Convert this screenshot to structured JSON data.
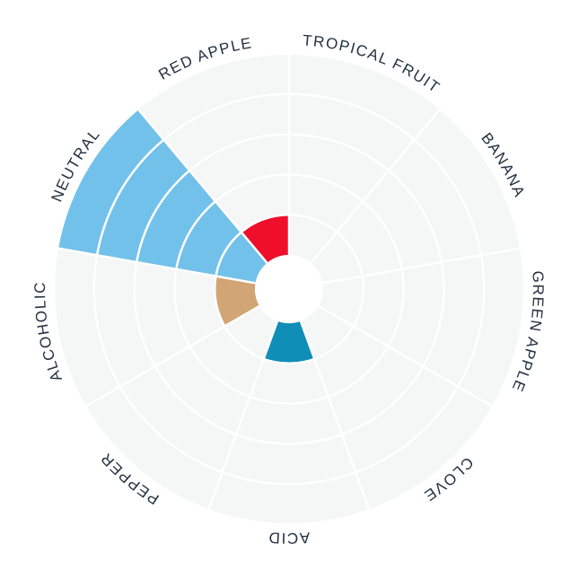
{
  "chart_data": {
    "type": "polar-bar",
    "categories": [
      "TROPICAL FRUIT",
      "BANANA",
      "GREEN APPLE",
      "CLOVE",
      "ACID",
      "PEPPER",
      "ALCOHOLIC",
      "NEUTRAL",
      "RED APPLE"
    ],
    "values": [
      0,
      0,
      0,
      0,
      1,
      0,
      1,
      5,
      1
    ],
    "colors": [
      null,
      null,
      null,
      null,
      "#0f8fb7",
      null,
      "#d2a574",
      "#72c1ea",
      "#ef0f2a"
    ],
    "ylim": [
      0,
      5
    ],
    "yticks": [
      1,
      2,
      3,
      4,
      5
    ],
    "grid": true
  }
}
